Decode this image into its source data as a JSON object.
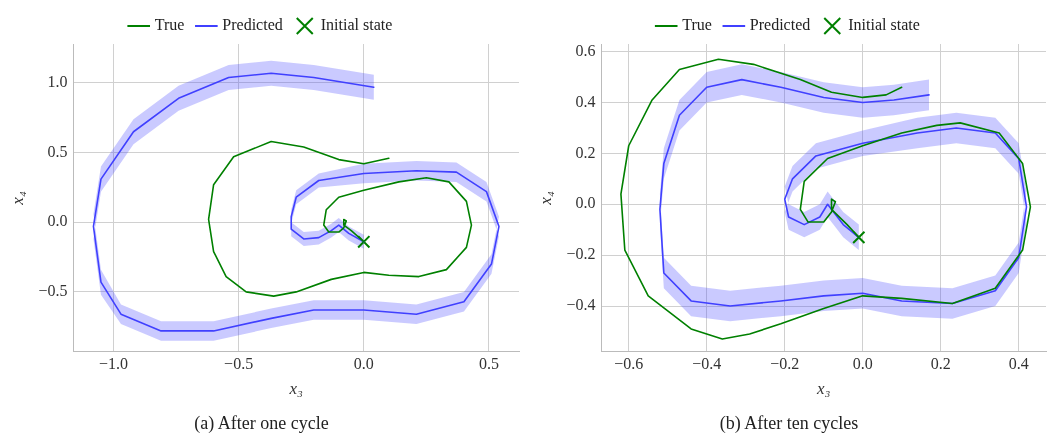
{
  "chart_data": [
    {
      "type": "line",
      "title": "(a) After one cycle",
      "xlabel": "x₃",
      "ylabel": "x₄",
      "xlim": [
        -1.16,
        0.62
      ],
      "ylim": [
        -0.93,
        1.28
      ],
      "xticks": [
        {
          "value": -1,
          "label": "−1.0"
        },
        {
          "value": -0.5,
          "label": "−0.5"
        },
        {
          "value": 0,
          "label": "0.0"
        },
        {
          "value": 0.5,
          "label": "0.5"
        }
      ],
      "yticks": [
        {
          "value": -0.5,
          "label": "−0.5"
        },
        {
          "value": 0,
          "label": "0.0"
        },
        {
          "value": 0.5,
          "label": "0.5"
        },
        {
          "value": 1,
          "label": "1.0"
        }
      ],
      "grid": true,
      "legend": "top",
      "series": [
        {
          "name": "True",
          "color": "#008000",
          "x": [
            0,
            -0.05,
            -0.08,
            -0.08,
            -0.07,
            -0.08,
            -0.1,
            -0.14,
            -0.16,
            -0.15,
            -0.1,
            0,
            0.14,
            0.25,
            0.34,
            0.41,
            0.43,
            0.41,
            0.33,
            0.22,
            0.1,
            0,
            -0.13,
            -0.27,
            -0.36,
            -0.47,
            -0.55,
            -0.6,
            -0.62,
            -0.6,
            -0.52,
            -0.37,
            -0.24,
            -0.1,
            0,
            0.1
          ],
          "values": [
            -0.14,
            -0.06,
            -0.02,
            0.02,
            0.01,
            -0.04,
            -0.07,
            -0.07,
            -0.02,
            0.09,
            0.18,
            0.23,
            0.29,
            0.32,
            0.29,
            0.15,
            -0.02,
            -0.18,
            -0.34,
            -0.39,
            -0.38,
            -0.36,
            -0.41,
            -0.5,
            -0.53,
            -0.5,
            -0.39,
            -0.21,
            0.02,
            0.27,
            0.47,
            0.58,
            0.54,
            0.45,
            0.42,
            0.46
          ]
        },
        {
          "name": "Predicted",
          "color": "#4040ff",
          "x": [
            0,
            -0.06,
            -0.1,
            -0.13,
            -0.18,
            -0.24,
            -0.29,
            -0.29,
            -0.27,
            -0.18,
            0,
            0.21,
            0.37,
            0.49,
            0.54,
            0.51,
            0.4,
            0.21,
            0,
            -0.2,
            -0.37,
            -0.6,
            -0.81,
            -0.97,
            -1.05,
            -1.08,
            -1.05,
            -0.92,
            -0.74,
            -0.54,
            -0.37,
            -0.2,
            0.04
          ],
          "values": [
            -0.14,
            -0.08,
            -0.02,
            -0.06,
            -0.11,
            -0.12,
            -0.05,
            0.04,
            0.18,
            0.3,
            0.35,
            0.37,
            0.36,
            0.22,
            -0.03,
            -0.3,
            -0.57,
            -0.66,
            -0.63,
            -0.63,
            -0.69,
            -0.78,
            -0.78,
            -0.66,
            -0.43,
            -0.03,
            0.31,
            0.65,
            0.89,
            1.04,
            1.07,
            1.04,
            0.97
          ],
          "lower": [
            -0.19,
            -0.13,
            -0.07,
            -0.11,
            -0.16,
            -0.17,
            -0.1,
            -0.01,
            0.13,
            0.25,
            0.28,
            0.3,
            0.29,
            0.15,
            -0.1,
            -0.37,
            -0.64,
            -0.73,
            -0.7,
            -0.7,
            -0.76,
            -0.85,
            -0.85,
            -0.73,
            -0.52,
            -0.12,
            0.22,
            0.56,
            0.8,
            0.95,
            0.98,
            0.95,
            0.88
          ],
          "upper": [
            -0.09,
            -0.03,
            0.03,
            -0.01,
            -0.06,
            -0.07,
            0.0,
            0.09,
            0.23,
            0.35,
            0.42,
            0.44,
            0.43,
            0.29,
            0.04,
            -0.23,
            -0.5,
            -0.59,
            -0.56,
            -0.56,
            -0.62,
            -0.71,
            -0.71,
            -0.59,
            -0.34,
            0.06,
            0.4,
            0.74,
            0.98,
            1.13,
            1.16,
            1.13,
            1.06
          ]
        },
        {
          "name": "Initial state",
          "type": "scatter",
          "marker": "cross",
          "color": "#008000",
          "x": [
            0
          ],
          "values": [
            -0.14
          ]
        }
      ]
    },
    {
      "type": "line",
      "title": "(b) After ten cycles",
      "xlabel": "x₃",
      "ylabel": "x₄",
      "xlim": [
        -0.67,
        0.47
      ],
      "ylim": [
        -0.58,
        0.63
      ],
      "xticks": [
        {
          "value": -0.6,
          "label": "−0.6"
        },
        {
          "value": -0.4,
          "label": "−0.4"
        },
        {
          "value": -0.2,
          "label": "−0.2"
        },
        {
          "value": 0,
          "label": "0.0"
        },
        {
          "value": 0.2,
          "label": "0.2"
        },
        {
          "value": 0.4,
          "label": "0.4"
        }
      ],
      "yticks": [
        {
          "value": -0.4,
          "label": "−0.4"
        },
        {
          "value": -0.2,
          "label": "−0.2"
        },
        {
          "value": 0,
          "label": "0.0"
        },
        {
          "value": 0.2,
          "label": "0.2"
        },
        {
          "value": 0.4,
          "label": "0.4"
        },
        {
          "value": 0.6,
          "label": "0.6"
        }
      ],
      "grid": true,
      "legend": "top",
      "series": [
        {
          "name": "True",
          "color": "#008000",
          "x": [
            -0.01,
            -0.04,
            -0.08,
            -0.08,
            -0.07,
            -0.08,
            -0.1,
            -0.14,
            -0.16,
            -0.15,
            -0.09,
            0,
            0.1,
            0.19,
            0.25,
            0.35,
            0.41,
            0.43,
            0.41,
            0.34,
            0.23,
            0.1,
            0,
            -0.1,
            -0.21,
            -0.29,
            -0.36,
            -0.44,
            -0.55,
            -0.61,
            -0.62,
            -0.6,
            -0.54,
            -0.47,
            -0.37,
            -0.28,
            -0.16,
            -0.08,
            0,
            0.06,
            0.1
          ],
          "values": [
            -0.13,
            -0.08,
            -0.02,
            0.02,
            0.01,
            -0.03,
            -0.07,
            -0.07,
            -0.02,
            0.09,
            0.18,
            0.23,
            0.28,
            0.31,
            0.32,
            0.28,
            0.16,
            -0.01,
            -0.18,
            -0.33,
            -0.39,
            -0.37,
            -0.36,
            -0.41,
            -0.47,
            -0.51,
            -0.53,
            -0.49,
            -0.36,
            -0.18,
            0.04,
            0.23,
            0.41,
            0.53,
            0.57,
            0.55,
            0.49,
            0.44,
            0.42,
            0.43,
            0.46
          ]
        },
        {
          "name": "Predicted",
          "color": "#4040ff",
          "x": [
            -0.01,
            -0.05,
            -0.09,
            -0.11,
            -0.15,
            -0.19,
            -0.2,
            -0.18,
            -0.12,
            0,
            0.14,
            0.24,
            0.34,
            0.4,
            0.42,
            0.4,
            0.34,
            0.23,
            0.1,
            0,
            -0.1,
            -0.21,
            -0.34,
            -0.44,
            -0.51,
            -0.52,
            -0.51,
            -0.47,
            -0.4,
            -0.31,
            -0.21,
            -0.1,
            0,
            0.08,
            0.17
          ],
          "values": [
            -0.13,
            -0.08,
            0.0,
            -0.05,
            -0.08,
            -0.05,
            0.02,
            0.1,
            0.19,
            0.24,
            0.28,
            0.3,
            0.28,
            0.18,
            -0.01,
            -0.21,
            -0.34,
            -0.39,
            -0.38,
            -0.35,
            -0.36,
            -0.38,
            -0.4,
            -0.38,
            -0.27,
            -0.02,
            0.16,
            0.35,
            0.46,
            0.49,
            0.46,
            0.42,
            0.4,
            0.41,
            0.43
          ],
          "lower": [
            -0.18,
            -0.13,
            -0.05,
            -0.1,
            -0.13,
            -0.1,
            -0.03,
            0.05,
            0.14,
            0.19,
            0.22,
            0.24,
            0.22,
            0.12,
            -0.07,
            -0.27,
            -0.4,
            -0.45,
            -0.44,
            -0.41,
            -0.42,
            -0.44,
            -0.46,
            -0.44,
            -0.33,
            -0.08,
            0.1,
            0.29,
            0.4,
            0.43,
            0.4,
            0.36,
            0.34,
            0.35,
            0.37
          ],
          "upper": [
            -0.08,
            -0.03,
            0.05,
            0.0,
            -0.03,
            0.0,
            0.07,
            0.15,
            0.24,
            0.29,
            0.34,
            0.36,
            0.34,
            0.24,
            0.05,
            -0.15,
            -0.28,
            -0.33,
            -0.32,
            -0.29,
            -0.3,
            -0.32,
            -0.34,
            -0.32,
            -0.21,
            0.04,
            0.22,
            0.41,
            0.52,
            0.55,
            0.52,
            0.48,
            0.46,
            0.47,
            0.49
          ]
        },
        {
          "name": "Initial state",
          "type": "scatter",
          "marker": "cross",
          "color": "#008000",
          "x": [
            -0.01
          ],
          "values": [
            -0.13
          ]
        }
      ]
    }
  ]
}
